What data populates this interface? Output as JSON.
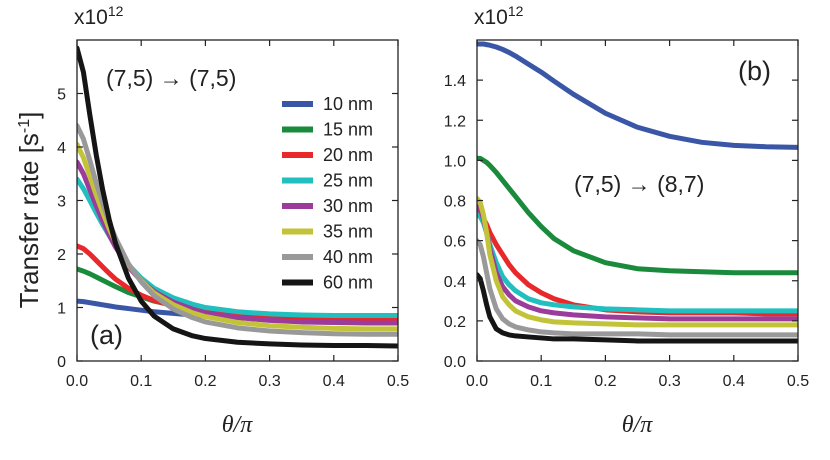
{
  "chart_data": [
    {
      "type": "line",
      "panel_label": "(a)",
      "annotation": "(7,5) → (7,5)",
      "xlabel": "θ/π",
      "ylabel": "Transfer rate [s-1]",
      "y_multiplier": "x10^12",
      "xlim": [
        0,
        0.5
      ],
      "ylim": [
        0,
        6
      ],
      "xticks": [
        0.0,
        0.1,
        0.2,
        0.3,
        0.4,
        0.5
      ],
      "xtick_labels": [
        "0.0",
        "0.1",
        "0.2",
        "0.3",
        "0.4",
        "0.5"
      ],
      "yticks": [
        0,
        1,
        2,
        3,
        4,
        5
      ],
      "ytick_labels": [
        "0",
        "1",
        "2",
        "3",
        "4",
        "5"
      ],
      "x": [
        0,
        0.01,
        0.02,
        0.03,
        0.04,
        0.05,
        0.06,
        0.08,
        0.1,
        0.12,
        0.15,
        0.18,
        0.2,
        0.25,
        0.3,
        0.35,
        0.4,
        0.45,
        0.5
      ],
      "legend": {
        "position": "right",
        "entries": [
          {
            "label": "10 nm",
            "color": "#3a56a6"
          },
          {
            "label": "15 nm",
            "color": "#1a8a3c"
          },
          {
            "label": "20 nm",
            "color": "#e8282a"
          },
          {
            "label": "25 nm",
            "color": "#22bfbf"
          },
          {
            "label": "30 nm",
            "color": "#9b3c9b"
          },
          {
            "label": "35 nm",
            "color": "#c3c33a"
          },
          {
            "label": "40 nm",
            "color": "#999999"
          },
          {
            "label": "60 nm",
            "color": "#151515"
          }
        ]
      },
      "series": [
        {
          "name": "10 nm",
          "color": "#3a56a6",
          "values": [
            1.12,
            1.11,
            1.09,
            1.07,
            1.05,
            1.03,
            1.01,
            0.98,
            0.95,
            0.92,
            0.89,
            0.86,
            0.85,
            0.82,
            0.8,
            0.79,
            0.79,
            0.78,
            0.78
          ]
        },
        {
          "name": "15 nm",
          "color": "#1a8a3c",
          "values": [
            1.72,
            1.68,
            1.63,
            1.57,
            1.51,
            1.45,
            1.39,
            1.28,
            1.2,
            1.12,
            1.04,
            0.98,
            0.95,
            0.9,
            0.86,
            0.84,
            0.83,
            0.82,
            0.82
          ]
        },
        {
          "name": "20 nm",
          "color": "#e8282a",
          "values": [
            2.15,
            2.1,
            2.0,
            1.88,
            1.76,
            1.64,
            1.53,
            1.36,
            1.23,
            1.13,
            1.03,
            0.96,
            0.92,
            0.87,
            0.84,
            0.82,
            0.81,
            0.8,
            0.8
          ]
        },
        {
          "name": "25 nm",
          "color": "#22bfbf",
          "values": [
            3.4,
            3.22,
            3.0,
            2.77,
            2.55,
            2.35,
            2.15,
            1.8,
            1.55,
            1.36,
            1.18,
            1.06,
            1.0,
            0.92,
            0.88,
            0.86,
            0.85,
            0.85,
            0.85
          ]
        },
        {
          "name": "30 nm",
          "color": "#9b3c9b",
          "values": [
            3.72,
            3.5,
            3.2,
            2.9,
            2.62,
            2.36,
            2.13,
            1.76,
            1.5,
            1.3,
            1.1,
            0.97,
            0.9,
            0.81,
            0.76,
            0.73,
            0.72,
            0.71,
            0.71
          ]
        },
        {
          "name": "35 nm",
          "color": "#c3c33a",
          "values": [
            4.05,
            3.8,
            3.45,
            3.1,
            2.78,
            2.48,
            2.22,
            1.8,
            1.5,
            1.27,
            1.05,
            0.9,
            0.83,
            0.72,
            0.66,
            0.63,
            0.61,
            0.6,
            0.6
          ]
        },
        {
          "name": "40 nm",
          "color": "#999999",
          "values": [
            4.4,
            4.15,
            3.75,
            3.33,
            2.95,
            2.6,
            2.3,
            1.82,
            1.48,
            1.22,
            0.97,
            0.81,
            0.73,
            0.62,
            0.56,
            0.53,
            0.51,
            0.5,
            0.5
          ]
        },
        {
          "name": "60 nm",
          "color": "#151515",
          "values": [
            5.85,
            5.4,
            4.6,
            3.85,
            3.2,
            2.65,
            2.2,
            1.55,
            1.12,
            0.84,
            0.6,
            0.47,
            0.42,
            0.35,
            0.32,
            0.3,
            0.29,
            0.29,
            0.28
          ]
        }
      ]
    },
    {
      "type": "line",
      "panel_label": "(b)",
      "annotation": "(7,5) → (8,7)",
      "xlabel": "θ/π",
      "ylabel": "",
      "y_multiplier": "x10^12",
      "xlim": [
        0,
        0.5
      ],
      "ylim": [
        0,
        1.6
      ],
      "xticks": [
        0.0,
        0.1,
        0.2,
        0.3,
        0.4,
        0.5
      ],
      "xtick_labels": [
        "0.0",
        "0.1",
        "0.2",
        "0.3",
        "0.4",
        "0.5"
      ],
      "yticks": [
        0,
        0.2,
        0.4,
        0.6,
        0.8,
        1.0,
        1.2,
        1.4
      ],
      "ytick_labels": [
        "0.0",
        "0.2",
        "0.4",
        "0.6",
        "0.8",
        "1.0",
        "1.2",
        "1.4"
      ],
      "x": [
        0,
        0.005,
        0.01,
        0.015,
        0.02,
        0.03,
        0.04,
        0.05,
        0.06,
        0.08,
        0.1,
        0.12,
        0.15,
        0.2,
        0.25,
        0.3,
        0.35,
        0.4,
        0.45,
        0.5
      ],
      "series": [
        {
          "name": "10 nm",
          "color": "#3a56a6",
          "values": [
            1.58,
            1.58,
            1.58,
            1.577,
            1.574,
            1.565,
            1.553,
            1.538,
            1.52,
            1.48,
            1.44,
            1.395,
            1.33,
            1.235,
            1.165,
            1.12,
            1.09,
            1.075,
            1.068,
            1.065
          ]
        },
        {
          "name": "15 nm",
          "color": "#1a8a3c",
          "values": [
            1.01,
            1.01,
            1.0,
            0.99,
            0.975,
            0.94,
            0.9,
            0.86,
            0.82,
            0.74,
            0.67,
            0.61,
            0.55,
            0.49,
            0.46,
            0.45,
            0.445,
            0.44,
            0.44,
            0.44
          ]
        },
        {
          "name": "20 nm",
          "color": "#e8282a",
          "values": [
            0.75,
            0.74,
            0.71,
            0.68,
            0.64,
            0.58,
            0.53,
            0.48,
            0.44,
            0.38,
            0.34,
            0.31,
            0.28,
            0.255,
            0.245,
            0.24,
            0.24,
            0.24,
            0.235,
            0.235
          ]
        },
        {
          "name": "25 nm",
          "color": "#22bfbf",
          "values": [
            0.73,
            0.72,
            0.69,
            0.64,
            0.58,
            0.49,
            0.42,
            0.38,
            0.35,
            0.31,
            0.29,
            0.28,
            0.27,
            0.26,
            0.255,
            0.25,
            0.25,
            0.25,
            0.25,
            0.25
          ]
        },
        {
          "name": "30 nm",
          "color": "#9b3c9b",
          "values": [
            0.77,
            0.76,
            0.71,
            0.64,
            0.56,
            0.44,
            0.37,
            0.33,
            0.3,
            0.27,
            0.25,
            0.24,
            0.23,
            0.22,
            0.215,
            0.21,
            0.21,
            0.21,
            0.21,
            0.21
          ]
        },
        {
          "name": "35 nm",
          "color": "#c3c33a",
          "values": [
            0.81,
            0.79,
            0.73,
            0.64,
            0.53,
            0.4,
            0.32,
            0.28,
            0.25,
            0.22,
            0.205,
            0.195,
            0.19,
            0.185,
            0.18,
            0.18,
            0.18,
            0.18,
            0.18,
            0.18
          ]
        },
        {
          "name": "40 nm",
          "color": "#999999",
          "values": [
            0.6,
            0.58,
            0.52,
            0.44,
            0.36,
            0.26,
            0.21,
            0.185,
            0.17,
            0.155,
            0.145,
            0.14,
            0.135,
            0.135,
            0.135,
            0.13,
            0.13,
            0.13,
            0.13,
            0.13
          ]
        },
        {
          "name": "60 nm",
          "color": "#151515",
          "values": [
            0.43,
            0.41,
            0.35,
            0.28,
            0.22,
            0.16,
            0.14,
            0.13,
            0.125,
            0.12,
            0.115,
            0.11,
            0.11,
            0.105,
            0.1,
            0.1,
            0.1,
            0.1,
            0.1,
            0.1
          ]
        }
      ]
    }
  ],
  "panels_text": {
    "a": {
      "mult_base": "x10",
      "mult_exp": "12",
      "ylabel_main": "Transfer rate [s",
      "ylabel_sup": "-1",
      "ylabel_close": "]",
      "xlabel": "θ/π"
    },
    "b": {
      "mult_base": "x10",
      "mult_exp": "12",
      "xlabel": "θ/π"
    }
  }
}
